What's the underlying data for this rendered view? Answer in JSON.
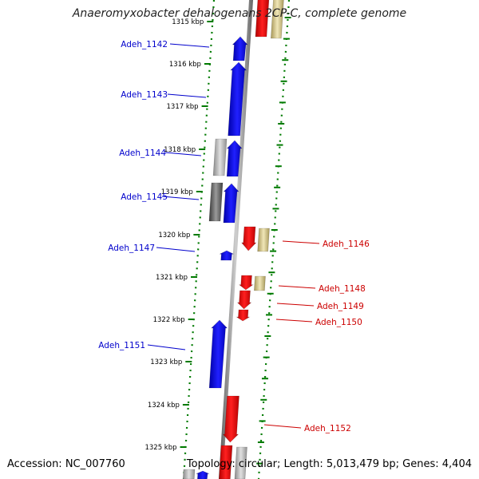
{
  "title": "Anaeromyxobacter dehalogenans 2CP-C, complete genome",
  "footer": {
    "accession": "Accession: NC_007760",
    "summary": "Topology: circular; Length: 5,013,479 bp; Genes: 4,404"
  },
  "colors": {
    "forward_gene": "#0000ee",
    "reverse_gene": "#ee0000",
    "gray_feature": "#a0a0a0",
    "dark_gray_feature": "#555555",
    "tan_feature": "#c8b878",
    "backbone": "#808080",
    "tick_green": "#007a00",
    "label_blue": "#0000cc",
    "label_red": "#cc0000"
  },
  "kbp_marks": [
    "1315 kbp",
    "1316 kbp",
    "1317 kbp",
    "1318 kbp",
    "1319 kbp",
    "1320 kbp",
    "1321 kbp",
    "1322 kbp",
    "1323 kbp",
    "1324 kbp",
    "1325 kbp"
  ],
  "left_labels": [
    "Adeh_1142",
    "Adeh_1143",
    "Adeh_1144",
    "Adeh_1145",
    "Adeh_1147",
    "Adeh_1151"
  ],
  "right_labels": [
    "Adeh_1146",
    "Adeh_1148",
    "Adeh_1149",
    "Adeh_1150",
    "Adeh_1152"
  ]
}
